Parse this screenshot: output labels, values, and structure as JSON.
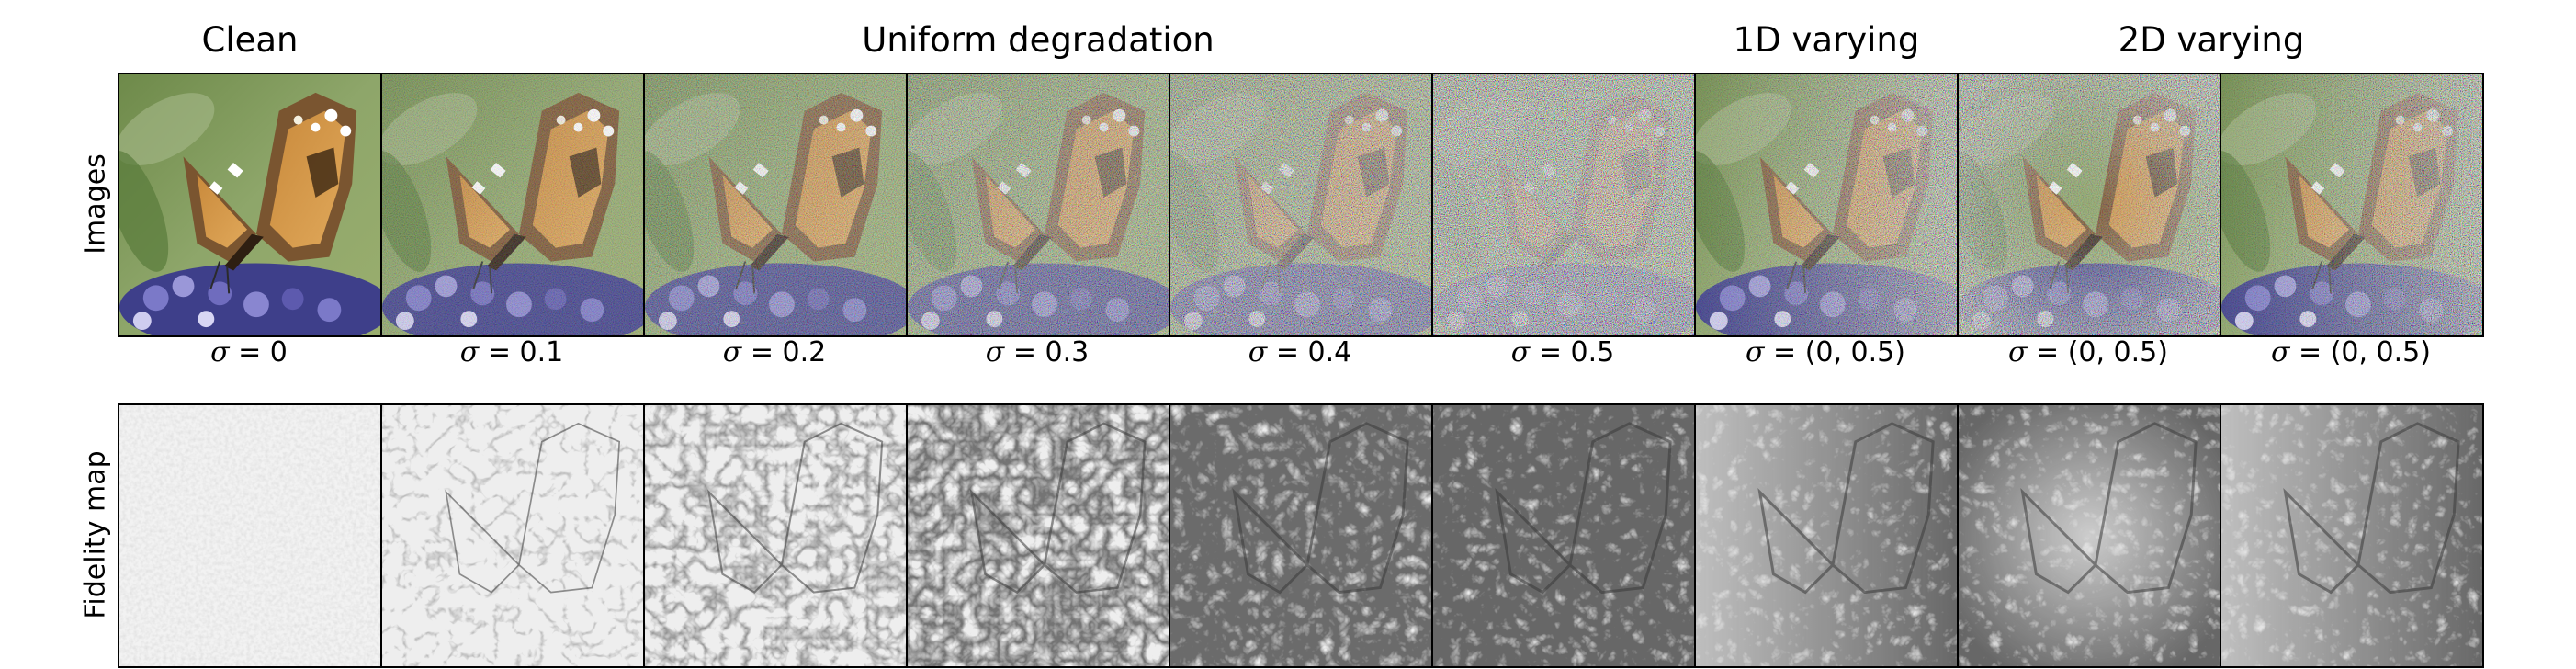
{
  "group_titles": {
    "clean": "Clean",
    "uniform": "Uniform degradation",
    "varying_1d": "1D varying",
    "varying_2d": "2D varying"
  },
  "row_labels": {
    "images": "Images",
    "fidelity": "Fidelity map"
  },
  "captions": [
    {
      "sym": "σ",
      "eq": " = 0"
    },
    {
      "sym": "σ",
      "eq": " = 0.1"
    },
    {
      "sym": "σ",
      "eq": " = 0.2"
    },
    {
      "sym": "σ",
      "eq": " = 0.3"
    },
    {
      "sym": "σ",
      "eq": " = 0.4"
    },
    {
      "sym": "σ",
      "eq": " = 0.5"
    },
    {
      "sym": "σ",
      "eq": " = (0, 0.5)"
    },
    {
      "sym": "σ",
      "eq": " = (0, 0.5)"
    },
    {
      "sym": "σ",
      "eq": " = (0, 0.5)"
    }
  ],
  "noise_levels": [
    0,
    0.1,
    0.2,
    0.3,
    0.4,
    0.5,
    0.5,
    0.5,
    0.5
  ],
  "noise_pattern": [
    "uniform",
    "uniform",
    "uniform",
    "uniform",
    "uniform",
    "uniform",
    "horizontal-gradient",
    "radial",
    "horizontal-gradient"
  ]
}
